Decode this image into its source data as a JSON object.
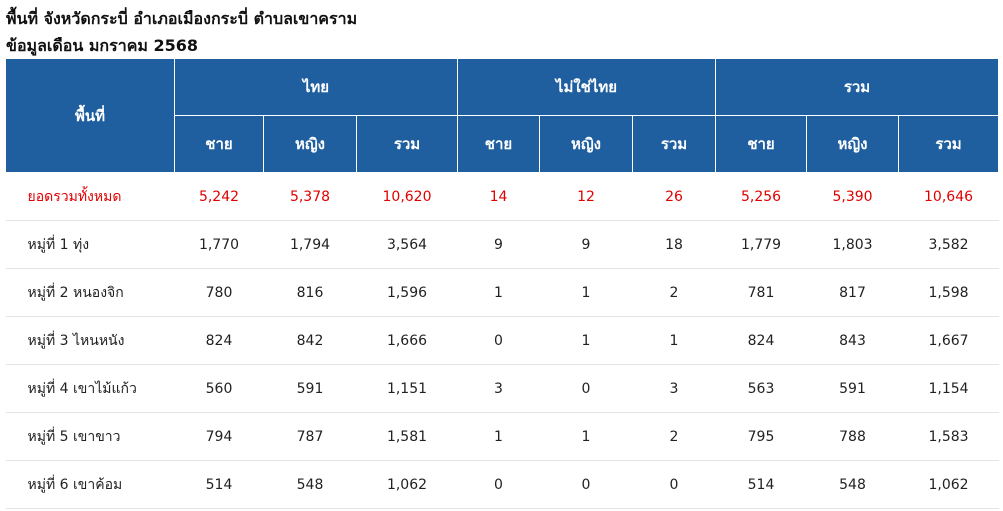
{
  "header": {
    "line1": "พื้นที่ จังหวัดกระบี่ อำเภอเมืองกระบี่ ตำบลเขาคราม",
    "line2": "ข้อมูลเดือน มกราคม 2568"
  },
  "table": {
    "area_label": "พื้นที่",
    "groups": [
      "ไทย",
      "ไม่ใช่ไทย",
      "รวม"
    ],
    "subheaders": [
      "ชาย",
      "หญิง",
      "รวม"
    ],
    "rows": [
      {
        "name": "ยอดรวมทั้งหมด",
        "values": [
          "5,242",
          "5,378",
          "10,620",
          "14",
          "12",
          "26",
          "5,256",
          "5,390",
          "10,646"
        ]
      },
      {
        "name": "หมู่ที่ 1 ทุ่ง",
        "values": [
          "1,770",
          "1,794",
          "3,564",
          "9",
          "9",
          "18",
          "1,779",
          "1,803",
          "3,582"
        ]
      },
      {
        "name": "หมู่ที่ 2 หนองจิก",
        "values": [
          "780",
          "816",
          "1,596",
          "1",
          "1",
          "2",
          "781",
          "817",
          "1,598"
        ]
      },
      {
        "name": "หมู่ที่ 3 ไหนหนัง",
        "values": [
          "824",
          "842",
          "1,666",
          "0",
          "1",
          "1",
          "824",
          "843",
          "1,667"
        ]
      },
      {
        "name": "หมู่ที่ 4 เขาไม้แก้ว",
        "values": [
          "560",
          "591",
          "1,151",
          "3",
          "0",
          "3",
          "563",
          "591",
          "1,154"
        ]
      },
      {
        "name": "หมู่ที่ 5 เขาขาว",
        "values": [
          "794",
          "787",
          "1,581",
          "1",
          "1",
          "2",
          "795",
          "788",
          "1,583"
        ]
      },
      {
        "name": "หมู่ที่ 6 เขาค้อม",
        "values": [
          "514",
          "548",
          "1,062",
          "0",
          "0",
          "0",
          "514",
          "548",
          "1,062"
        ]
      }
    ]
  }
}
